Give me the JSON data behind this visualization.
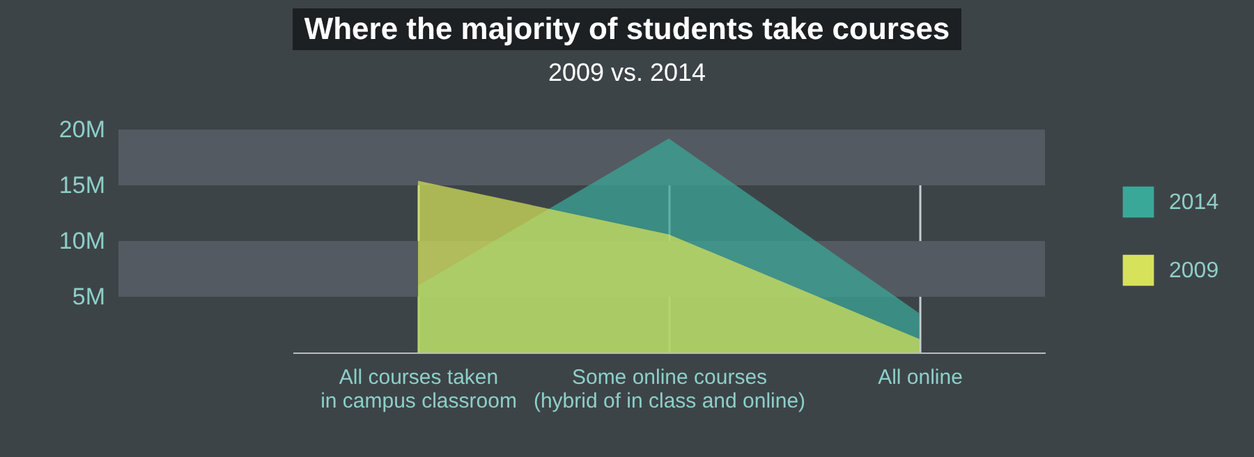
{
  "chart_data": {
    "type": "area",
    "title": "Where the majority of students take courses",
    "subtitle": "2009 vs. 2014",
    "categories": [
      "All courses taken\nin campus classroom",
      "Some online courses\n(hybrid of in class and online)",
      "All online"
    ],
    "series": [
      {
        "name": "2014",
        "color": "#3aa898",
        "values": [
          6.0,
          19.2,
          3.5
        ]
      },
      {
        "name": "2009",
        "color": "#d5e25a",
        "values": [
          15.4,
          10.6,
          1.2
        ]
      }
    ],
    "ylim": [
      0,
      20
    ],
    "yticks": [
      {
        "value": 5,
        "label": "5M"
      },
      {
        "value": 10,
        "label": "10M"
      },
      {
        "value": 15,
        "label": "15M"
      },
      {
        "value": 20,
        "label": "20M"
      }
    ],
    "bands": [
      {
        "axis": "y",
        "from": 15,
        "to": 20,
        "color": "#545a61"
      },
      {
        "axis": "y",
        "from": 5,
        "to": 10,
        "color": "#545a61"
      }
    ],
    "grid": "x",
    "legend": "right"
  }
}
